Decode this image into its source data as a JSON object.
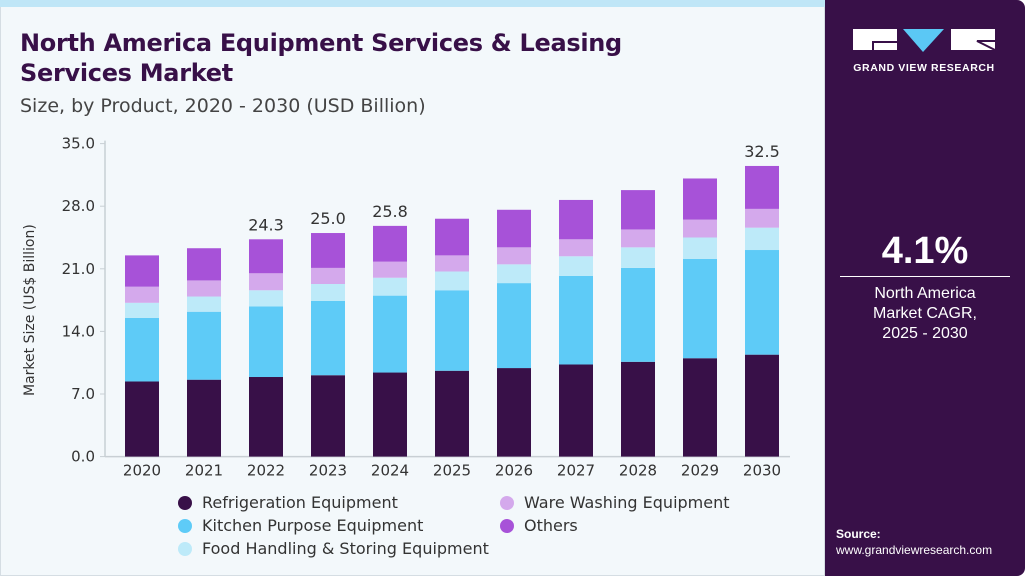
{
  "header": {
    "title": "North America Equipment Services & Leasing Services Market",
    "subtitle": "Size, by Product, 2020 - 2030 (USD Billion)"
  },
  "brand": {
    "name": "GRAND VIEW RESEARCH",
    "colors": {
      "panel": "#381048",
      "accent": "#5bc8f5"
    }
  },
  "cagr": {
    "value": "4.1%",
    "label_line1": "North America",
    "label_line2": "Market CAGR,",
    "label_line3": "2025 - 2030"
  },
  "source": {
    "label": "Source:",
    "url": "www.grandviewresearch.com"
  },
  "chart_data": {
    "type": "bar",
    "stacked": true,
    "title": "North America Equipment Services & Leasing Services Market",
    "ylabel": "Market Size (US$ Billion)",
    "xlabel": "",
    "ylim": [
      0,
      35
    ],
    "yticks": [
      "0.0",
      "7.0",
      "14.0",
      "21.0",
      "28.0",
      "35.0"
    ],
    "grid": false,
    "legend_placement": "bottom",
    "categories": [
      "2020",
      "2021",
      "2022",
      "2023",
      "2024",
      "2025",
      "2026",
      "2027",
      "2028",
      "2029",
      "2030"
    ],
    "series": [
      {
        "name": "Refrigeration Equipment",
        "color": "#381048",
        "values": [
          8.4,
          8.6,
          8.9,
          9.1,
          9.4,
          9.6,
          9.9,
          10.3,
          10.6,
          11.0,
          11.4
        ]
      },
      {
        "name": "Kitchen Purpose Equipment",
        "color": "#5ecbf7",
        "values": [
          7.1,
          7.6,
          7.9,
          8.3,
          8.6,
          9.0,
          9.5,
          9.9,
          10.5,
          11.1,
          11.7
        ]
      },
      {
        "name": "Food Handling & Storing Equipment",
        "color": "#bdeaf9",
        "values": [
          1.7,
          1.7,
          1.8,
          1.9,
          2.0,
          2.1,
          2.1,
          2.2,
          2.3,
          2.4,
          2.5
        ]
      },
      {
        "name": "Ware Washing Equipment",
        "color": "#d4a9ec",
        "values": [
          1.8,
          1.8,
          1.9,
          1.8,
          1.8,
          1.8,
          1.9,
          1.9,
          2.0,
          2.0,
          2.1
        ]
      },
      {
        "name": "Others",
        "color": "#a752d8",
        "values": [
          3.5,
          3.6,
          3.8,
          3.9,
          4.0,
          4.1,
          4.2,
          4.4,
          4.4,
          4.6,
          4.8
        ]
      }
    ],
    "data_labels": [
      {
        "category": "2022",
        "text": "24.3"
      },
      {
        "category": "2023",
        "text": "25.0"
      },
      {
        "category": "2024",
        "text": "25.8"
      },
      {
        "category": "2030",
        "text": "32.5"
      }
    ]
  }
}
